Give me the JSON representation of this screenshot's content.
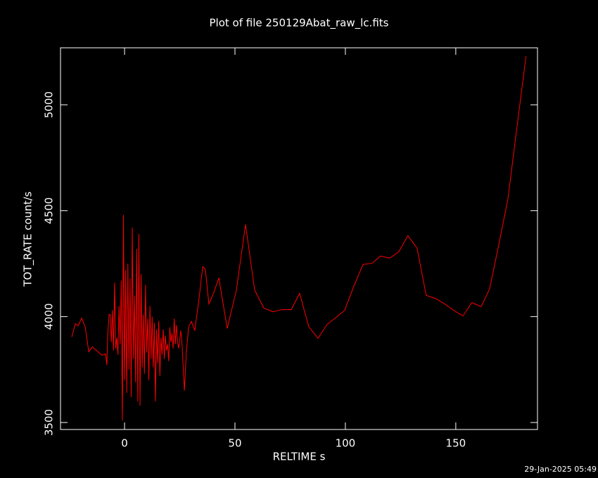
{
  "chart_data": {
    "type": "line",
    "title": "Plot of file 250129Abat_raw_lc.fits",
    "x_label": "RELTIME  s",
    "y_label": "TOT_RATE  count/s",
    "timestamp": "29-Jan-2025 05:49",
    "xlim": [
      -29,
      187
    ],
    "xticks": [
      0,
      50,
      100,
      150
    ],
    "ylim": [
      3467,
      5269
    ],
    "yticks": [
      3500,
      4000,
      4500,
      5000
    ],
    "series": [
      {
        "name": "TOT_RATE",
        "color": "#ff0000",
        "x": [
          -23.9,
          -22.3,
          -21.0,
          -19.4,
          -17.8,
          -16.2,
          -14.6,
          -10.2,
          -8.6,
          -8.0,
          -7.6,
          -7.0,
          -6.5,
          -6,
          -5.5,
          -5,
          -4.5,
          -4,
          -3.5,
          -3,
          -2.5,
          -2,
          -1.5,
          -1,
          -0.5,
          0,
          0.5,
          1,
          1.5,
          2,
          2.5,
          3,
          3.5,
          4,
          4.5,
          5,
          5.5,
          6,
          6.5,
          7,
          7.5,
          8,
          8.5,
          9,
          9.5,
          10,
          10.5,
          11,
          11.5,
          12,
          12.5,
          13,
          13.5,
          14,
          14.5,
          15,
          15.5,
          16,
          16.5,
          17,
          17.5,
          18,
          18.5,
          19,
          19.5,
          20,
          20.5,
          21,
          21.5,
          22,
          22.5,
          23,
          23.5,
          24,
          24.5,
          25.5,
          26.1,
          27.1,
          28.0,
          29.0,
          30.3,
          31.8,
          33.8,
          35.4,
          36.6,
          38.2,
          40.4,
          42.7,
          46.5,
          50.6,
          54.8,
          58.9,
          63.1,
          67.2,
          71.3,
          75.5,
          79.3,
          83.4,
          87.6,
          91.7,
          95.9,
          99.7,
          103.8,
          108.0,
          112.1,
          115.9,
          120.1,
          124.2,
          128.3,
          132.5,
          136.6,
          140.8,
          144.9,
          149.0,
          153.2,
          157.3,
          161.5,
          165.3,
          169.4,
          173.6,
          177.7,
          181.8
        ],
        "values": [
          3904,
          3967,
          3957,
          3993,
          3950,
          3834,
          3857,
          3817,
          3824,
          3771,
          3917,
          4010,
          4010,
          3880,
          4030,
          3840,
          4160,
          3850,
          3900,
          3820,
          4050,
          3870,
          4170,
          3510,
          4480,
          3700,
          4220,
          3640,
          4250,
          3750,
          4180,
          3620,
          4420,
          3800,
          4100,
          3690,
          4320,
          3600,
          4390,
          3580,
          4200,
          3760,
          4010,
          3730,
          4150,
          3830,
          3990,
          3700,
          4050,
          3800,
          4000,
          3760,
          3970,
          3600,
          3940,
          3780,
          3980,
          3720,
          3900,
          3820,
          3940,
          3800,
          3910,
          3840,
          3870,
          3790,
          3950,
          3880,
          3920,
          3850,
          3990,
          3870,
          3960,
          3880,
          3850,
          3934,
          3857,
          3651,
          3834,
          3950,
          3977,
          3934,
          4090,
          4236,
          4223,
          4060,
          4113,
          4183,
          3944,
          4123,
          4435,
          4126,
          4040,
          4023,
          4033,
          4033,
          4110,
          3953,
          3897,
          3963,
          3997,
          4030,
          4143,
          4246,
          4252,
          4286,
          4276,
          4306,
          4382,
          4322,
          4100,
          4086,
          4060,
          4030,
          4003,
          4066,
          4047,
          4130,
          4336,
          4555,
          4894,
          5229
        ]
      }
    ]
  }
}
